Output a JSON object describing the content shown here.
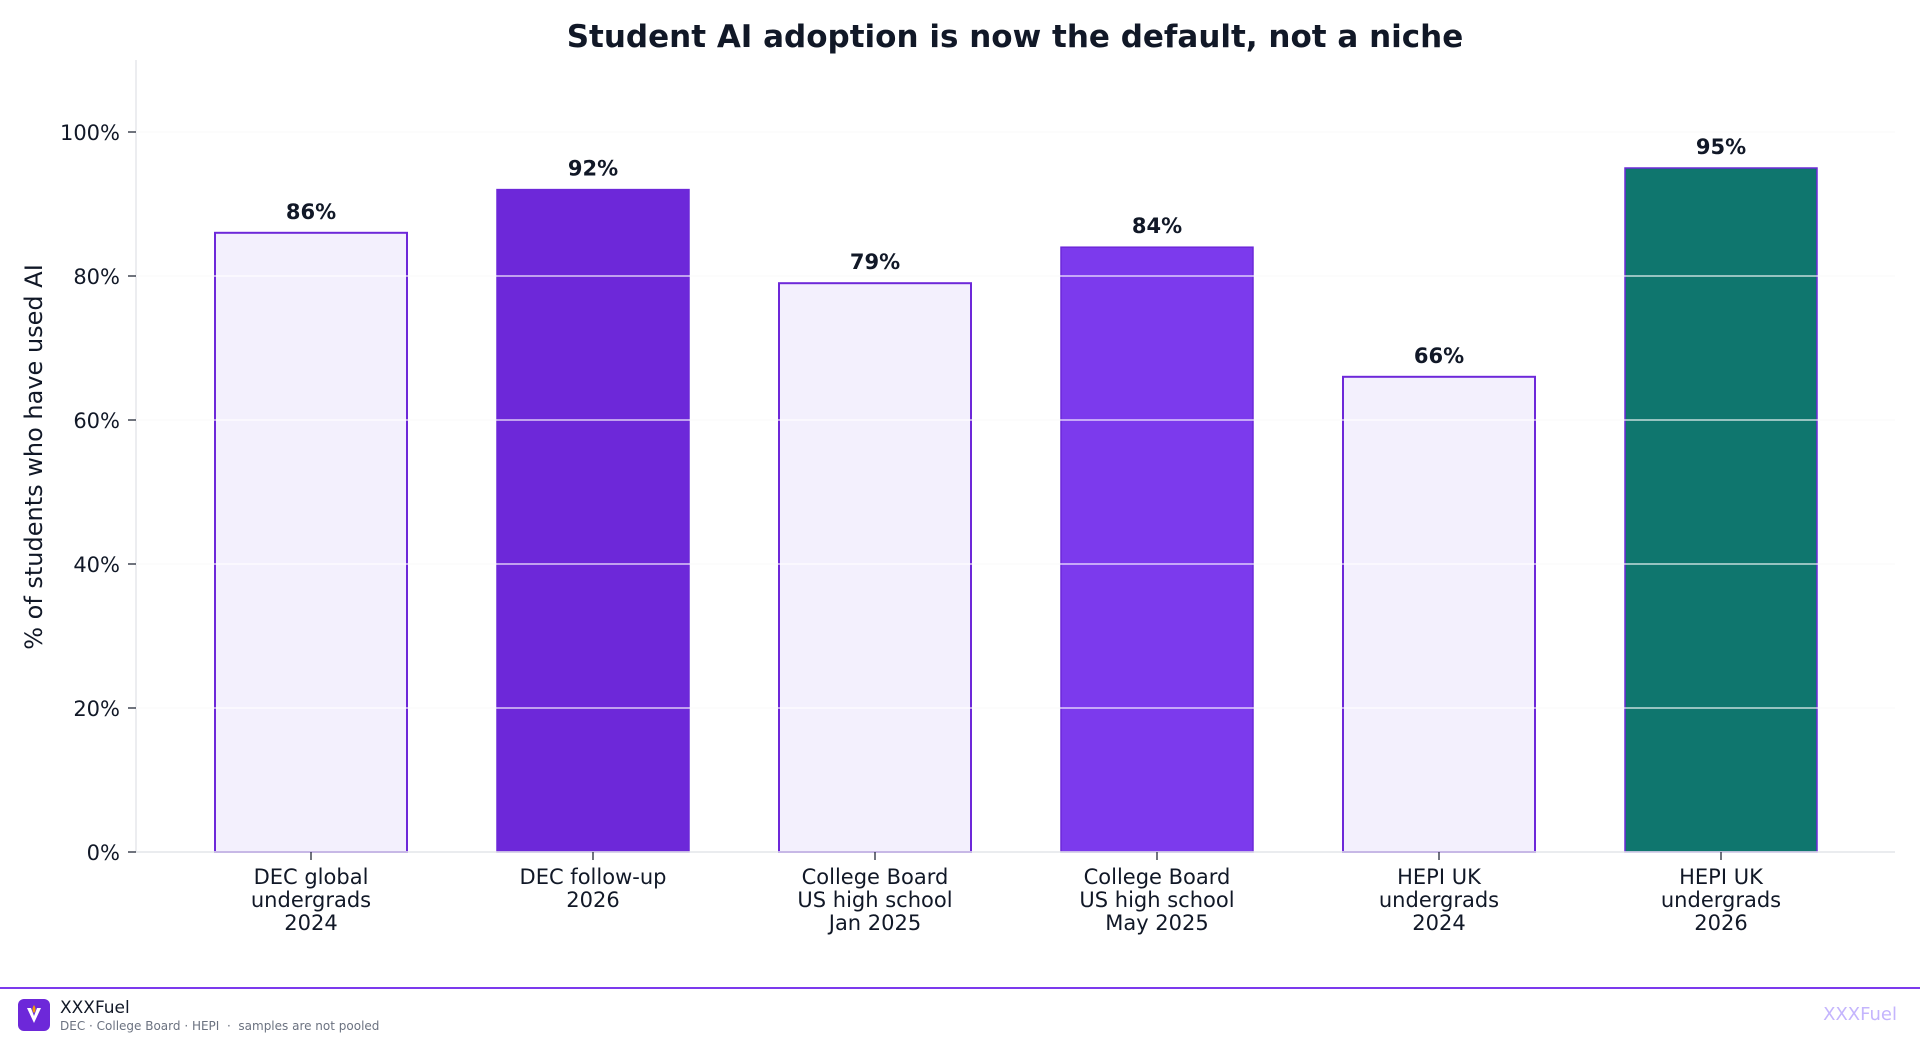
{
  "chart_data": {
    "type": "bar",
    "title": "Student AI adoption is now the default, not a niche",
    "xlabel": "",
    "ylabel": "% of students who have used AI",
    "categories": [
      [
        "DEC global",
        "undergrads",
        "2024"
      ],
      [
        "DEC follow-up",
        "2026"
      ],
      [
        "College Board",
        "US high school",
        "Jan 2025"
      ],
      [
        "College Board",
        "US high school",
        "May 2025"
      ],
      [
        "HEPI UK",
        "undergrads",
        "2024"
      ],
      [
        "HEPI UK",
        "undergrads",
        "2026"
      ]
    ],
    "values": [
      86,
      92,
      79,
      84,
      66,
      95
    ],
    "value_labels": [
      "86%",
      "92%",
      "79%",
      "84%",
      "66%",
      "95%"
    ],
    "bar_fills": [
      "#f3f0fd",
      "#6d28d9",
      "#f3f0fd",
      "#7c3aed",
      "#f3f0fd",
      "#0f766e"
    ],
    "bar_edge_color": "#6d28d9",
    "ylim": [
      0,
      110
    ],
    "yticks": [
      0,
      20,
      40,
      60,
      80,
      100
    ],
    "ytick_labels": [
      "0%",
      "20%",
      "40%",
      "60%",
      "80%",
      "100%"
    ],
    "grid": true,
    "legend": "none"
  },
  "footer": {
    "brand_name": "XXXFuel",
    "source_note": "DEC · College Board · HEPI  ·  samples are not pooled",
    "watermark": "XXXFuel"
  }
}
